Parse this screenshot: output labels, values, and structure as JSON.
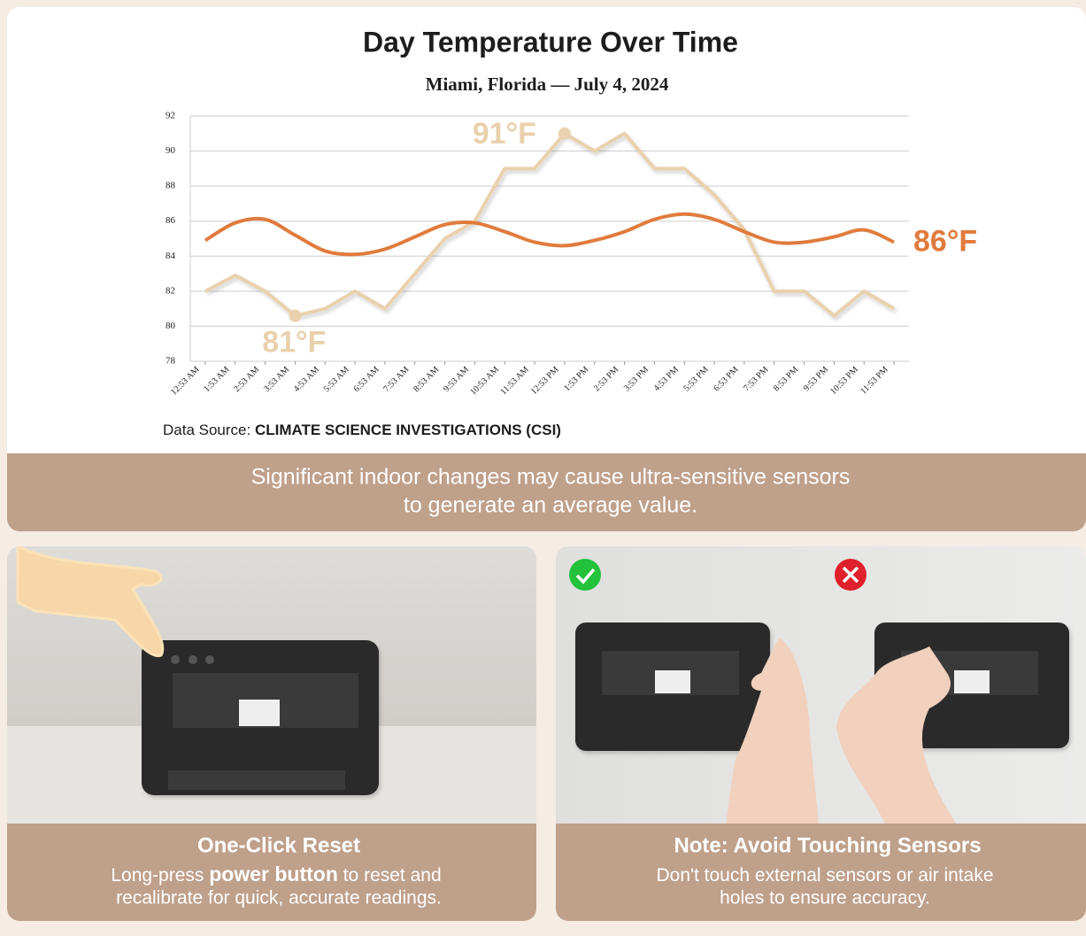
{
  "chart_data": {
    "type": "line",
    "title": "Day Temperature Over Time",
    "subtitle": "Miami, Florida — July 4, 2024",
    "categories": [
      "12:53 AM",
      "1:53 AM",
      "2:53 AM",
      "3:53 AM",
      "4:53 AM",
      "5:53 AM",
      "6:53 AM",
      "7:53 AM",
      "8:53 AM",
      "9:53 AM",
      "10:53 AM",
      "11:53 AM",
      "12:53 PM",
      "1:53 PM",
      "2:53 PM",
      "3:53 PM",
      "4:53 PM",
      "5:53 PM",
      "6:53 PM",
      "7:53 PM",
      "8:53 PM",
      "9:53 PM",
      "10:53 PM",
      "11:53 PM"
    ],
    "series": [
      {
        "color": "#e9d1ad",
        "smooth": false,
        "values": [
          82,
          82.9,
          82,
          80.6,
          81,
          82,
          81,
          83,
          85,
          86,
          89,
          89,
          91,
          90,
          91,
          89,
          89,
          87.5,
          85.5,
          82,
          82,
          80.6,
          82,
          81
        ]
      },
      {
        "color": "#e07b3c",
        "smooth": true,
        "values": [
          84.9,
          85.9,
          86.1,
          85.2,
          84.3,
          84.1,
          84.4,
          85.1,
          85.8,
          85.9,
          85.4,
          84.8,
          84.6,
          84.9,
          85.4,
          86.1,
          86.4,
          86.1,
          85.4,
          84.8,
          84.8,
          85.1,
          85.5,
          84.8
        ]
      }
    ],
    "annotations": [
      {
        "text": "91°F",
        "color": "#e9d1ad"
      },
      {
        "text": "86°F",
        "color": "#e07b3c"
      },
      {
        "text": "81°F",
        "color": "#e9d1ad"
      }
    ],
    "ylim": [
      78,
      92
    ],
    "yticks": [
      78,
      80,
      82,
      84,
      86,
      88,
      90,
      92
    ],
    "grid": true,
    "source_label": "Data Source:",
    "source": "CLIMATE SCIENCE INVESTIGATIONS (CSI)"
  },
  "banner": {
    "lines": [
      "Significant indoor changes may cause ultra-sensitive sensors",
      "to generate an average value."
    ]
  },
  "panels": [
    {
      "title": "One-Click Reset",
      "line1": [
        "Long-press ",
        "power button",
        " to reset and"
      ],
      "line2": "recalibrate for quick, accurate readings."
    },
    {
      "title": "Note: Avoid Touching Sensors",
      "line1": [
        "Don't touch external sensors or air intake"
      ],
      "line2": "holes to ensure accuracy."
    }
  ]
}
